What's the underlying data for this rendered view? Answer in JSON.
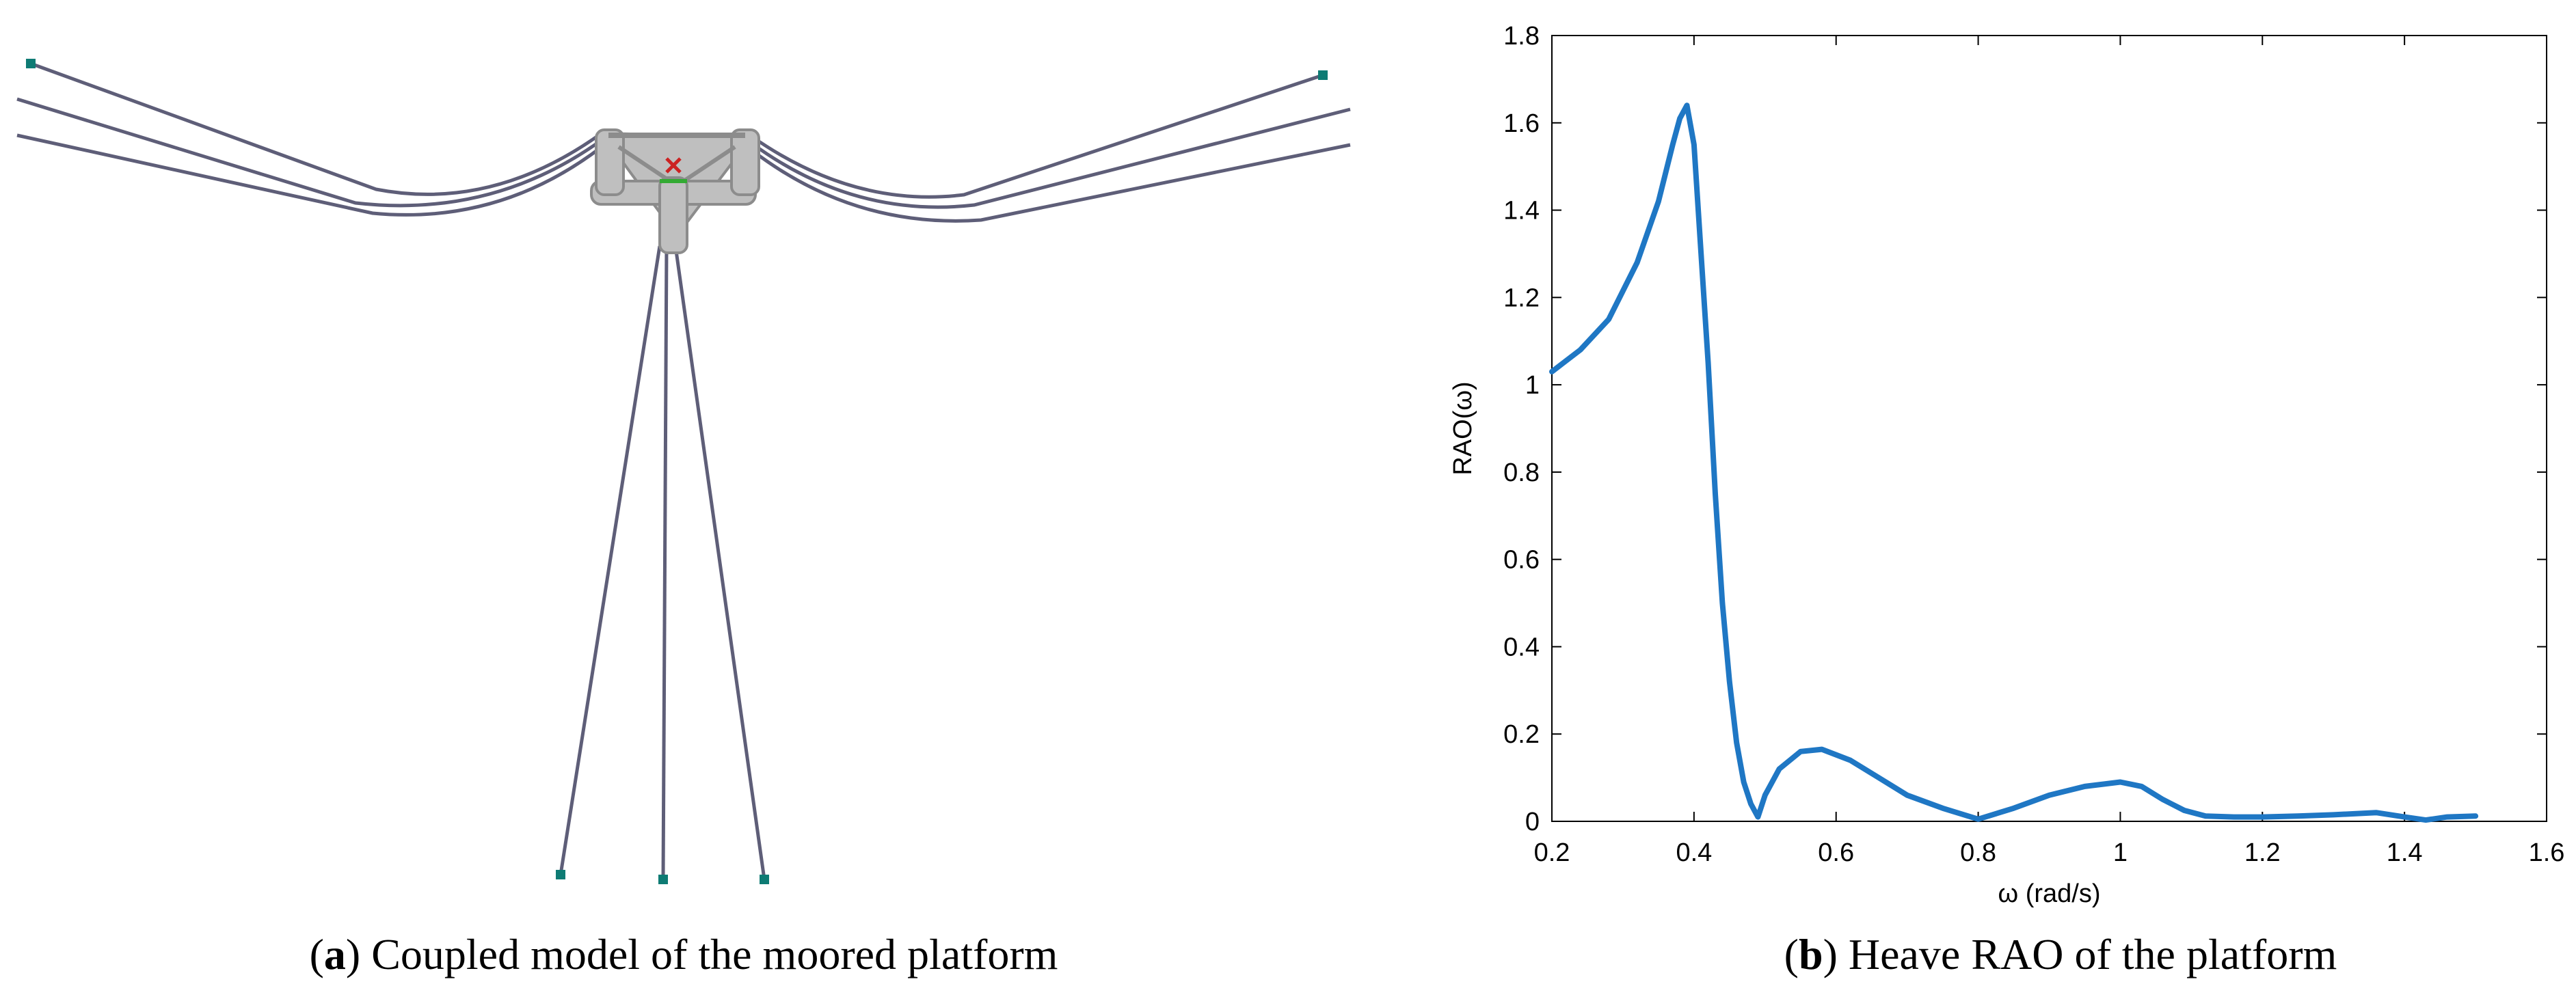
{
  "colors": {
    "mooring_line": "#5e5e78",
    "anchor": "#0e7b74",
    "platform": "#bfbfbf",
    "platform_dark": "#8c8c8c",
    "curve": "#1f77c4",
    "axis": "#000000"
  },
  "captions": {
    "a_letter": "a",
    "a_text": "Coupled model of the moored platform",
    "b_letter": "b",
    "b_text": "Heave RAO of the platform"
  },
  "chart_data": {
    "type": "line",
    "xlabel": "ω (rad/s)",
    "ylabel": "RAO(ω)",
    "xlim": [
      0.2,
      1.6
    ],
    "ylim": [
      0,
      1.8
    ],
    "xticks": [
      0.2,
      0.4,
      0.6,
      0.8,
      1,
      1.2,
      1.4,
      1.6
    ],
    "yticks": [
      0,
      0.2,
      0.4,
      0.6,
      0.8,
      1,
      1.2,
      1.4,
      1.6,
      1.8
    ],
    "xtick_labels": [
      "0.2",
      "0.4",
      "0.6",
      "0.8",
      "1",
      "1.2",
      "1.4",
      "1.6"
    ],
    "ytick_labels": [
      "0",
      "0.2",
      "0.4",
      "0.6",
      "0.8",
      "1",
      "1.2",
      "1.4",
      "1.6",
      "1.8"
    ],
    "grid": false,
    "series": [
      {
        "x": [
          0.2,
          0.24,
          0.28,
          0.32,
          0.35,
          0.37,
          0.38,
          0.39,
          0.4,
          0.41,
          0.42,
          0.43,
          0.44,
          0.45,
          0.46,
          0.47,
          0.48,
          0.49,
          0.5,
          0.52,
          0.55,
          0.58,
          0.62,
          0.66,
          0.7,
          0.75,
          0.8,
          0.85,
          0.9,
          0.95,
          1.0,
          1.03,
          1.06,
          1.09,
          1.12,
          1.16,
          1.2,
          1.25,
          1.3,
          1.36,
          1.4,
          1.43,
          1.46,
          1.5
        ],
        "y": [
          1.03,
          1.08,
          1.15,
          1.28,
          1.42,
          1.55,
          1.61,
          1.64,
          1.55,
          1.3,
          1.05,
          0.75,
          0.5,
          0.32,
          0.18,
          0.09,
          0.04,
          0.01,
          0.06,
          0.12,
          0.16,
          0.165,
          0.14,
          0.1,
          0.06,
          0.03,
          0.005,
          0.03,
          0.06,
          0.08,
          0.09,
          0.08,
          0.05,
          0.025,
          0.012,
          0.01,
          0.01,
          0.012,
          0.015,
          0.02,
          0.01,
          0.003,
          0.01,
          0.012
        ]
      }
    ]
  }
}
